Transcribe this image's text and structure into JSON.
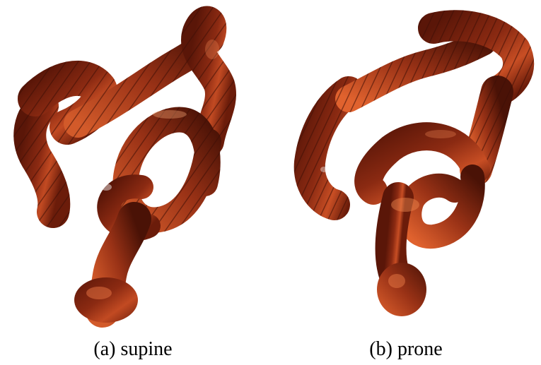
{
  "figure": {
    "panels": [
      {
        "caption": "(a) supine",
        "image_subject": "colon-3d-rendering-supine",
        "tissue_color": "#8b2a12",
        "highlight_color": "#d9582a"
      },
      {
        "caption": "(b) prone",
        "image_subject": "colon-3d-rendering-prone",
        "tissue_color": "#8b2a12",
        "highlight_color": "#d9582a"
      }
    ]
  }
}
